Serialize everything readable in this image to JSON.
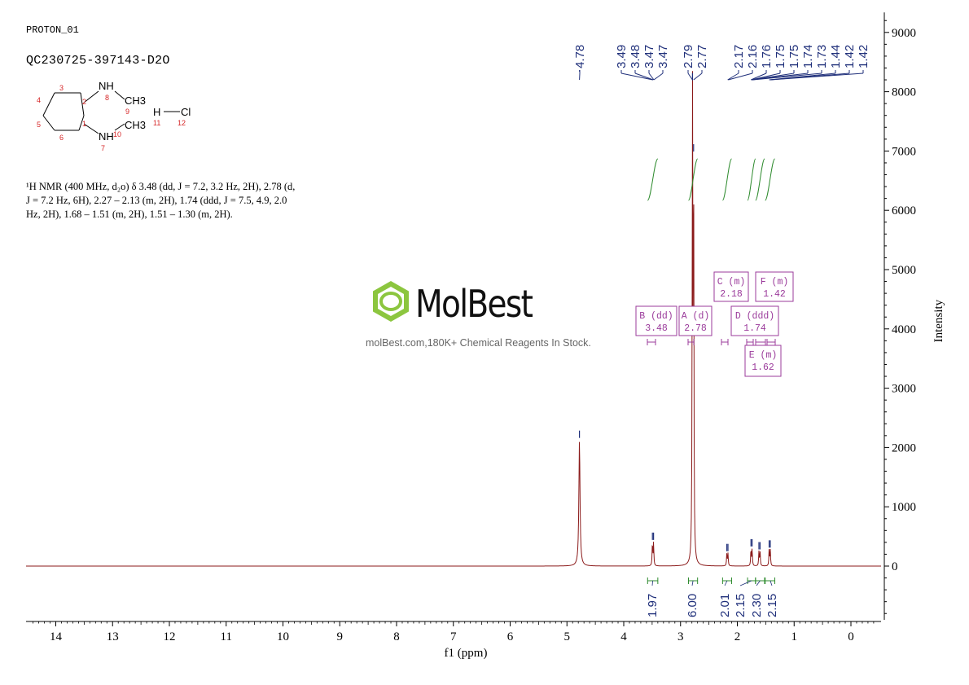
{
  "header": {
    "experiment": "PROTON_01",
    "sample_id": "QC230725-397143-D2O"
  },
  "structure": {
    "atoms": [
      "NH",
      "8",
      "CH3",
      "9",
      "H",
      "Cl",
      "11",
      "12",
      "CH3",
      "10",
      "NH",
      "7",
      "1",
      "2",
      "3",
      "4",
      "5",
      "6"
    ],
    "atom_color": "#d62728"
  },
  "nmr_text": {
    "line1": "¹H NMR (400 MHz, d₂o) δ 3.48 (dd, J = 7.2, 3.2 Hz, 2H), 2.78 (d,",
    "line2": "J = 7.2 Hz, 6H), 2.27 – 2.13 (m, 2H), 1.74 (ddd, J = 7.5, 4.9, 2.0",
    "line3": "Hz, 2H), 1.68 – 1.51 (m, 2H), 1.51 – 1.30 (m, 2H)."
  },
  "watermark": {
    "brand": "MolBest",
    "tagline": "molBest.com,180K+ Chemical Reagents In Stock.",
    "brand_color": "#8cc63f"
  },
  "chart_data": {
    "type": "line",
    "xlabel": "f1 (ppm)",
    "ylabel": "Intensity",
    "xlim": [
      14.5,
      -0.5
    ],
    "ylim": [
      -900,
      9200
    ],
    "x_ticks": [
      14,
      13,
      12,
      11,
      10,
      9,
      8,
      7,
      6,
      5,
      4,
      3,
      2,
      1,
      0
    ],
    "y_ticks": [
      0,
      1000,
      2000,
      3000,
      4000,
      5000,
      6000,
      7000,
      8000,
      9000
    ],
    "colors": {
      "spectrum": "#8b1a1a",
      "integral": "#2e8b2e",
      "peak_label": "#1f2f7a",
      "multiplet": "#9b3b9b"
    },
    "peaks": [
      {
        "ppm": 4.78,
        "height": 2120
      },
      {
        "ppm": 3.495,
        "height": 400
      },
      {
        "ppm": 3.475,
        "height": 400
      },
      {
        "ppm": 2.79,
        "height": 8150
      },
      {
        "ppm": 2.77,
        "height": 6950
      },
      {
        "ppm": 2.185,
        "height": 210
      },
      {
        "ppm": 2.165,
        "height": 210
      },
      {
        "ppm": 1.76,
        "height": 290
      },
      {
        "ppm": 1.74,
        "height": 290
      },
      {
        "ppm": 1.62,
        "height": 240
      },
      {
        "ppm": 1.6,
        "height": 240
      },
      {
        "ppm": 1.44,
        "height": 270
      },
      {
        "ppm": 1.42,
        "height": 270
      }
    ],
    "peak_labels": [
      "4.78",
      "3.49",
      "3.48",
      "3.47",
      "3.47",
      "2.79",
      "2.77",
      "2.17",
      "2.16",
      "1.76",
      "1.75",
      "1.75",
      "1.74",
      "1.73",
      "1.44",
      "1.42",
      "1.42"
    ],
    "peak_label_ppm": [
      4.78,
      3.49,
      3.48,
      3.47,
      3.47,
      2.79,
      2.77,
      2.17,
      2.16,
      1.76,
      1.75,
      1.75,
      1.74,
      1.73,
      1.44,
      1.42,
      1.42
    ],
    "integrals": [
      {
        "from": 3.58,
        "to": 3.4,
        "value": "1.97"
      },
      {
        "from": 2.86,
        "to": 2.7,
        "value": "6.00"
      },
      {
        "from": 2.26,
        "to": 2.1,
        "value": "2.01"
      },
      {
        "from": 1.82,
        "to": 1.68,
        "value": "2.15"
      },
      {
        "from": 1.68,
        "to": 1.52,
        "value": "2.30"
      },
      {
        "from": 1.51,
        "to": 1.34,
        "value": "2.15"
      }
    ],
    "multiplets": [
      {
        "label": "B (dd)",
        "shift": "3.48",
        "ppm": 3.48
      },
      {
        "label": "A (d)",
        "shift": "2.78",
        "ppm": 2.78
      },
      {
        "label": "C (m)",
        "shift": "2.18",
        "ppm": 2.18
      },
      {
        "label": "D (ddd)",
        "shift": "1.74",
        "ppm": 1.74
      },
      {
        "label": "E (m)",
        "shift": "1.62",
        "ppm": 1.62
      },
      {
        "label": "F (m)",
        "shift": "1.42",
        "ppm": 1.42
      }
    ]
  }
}
